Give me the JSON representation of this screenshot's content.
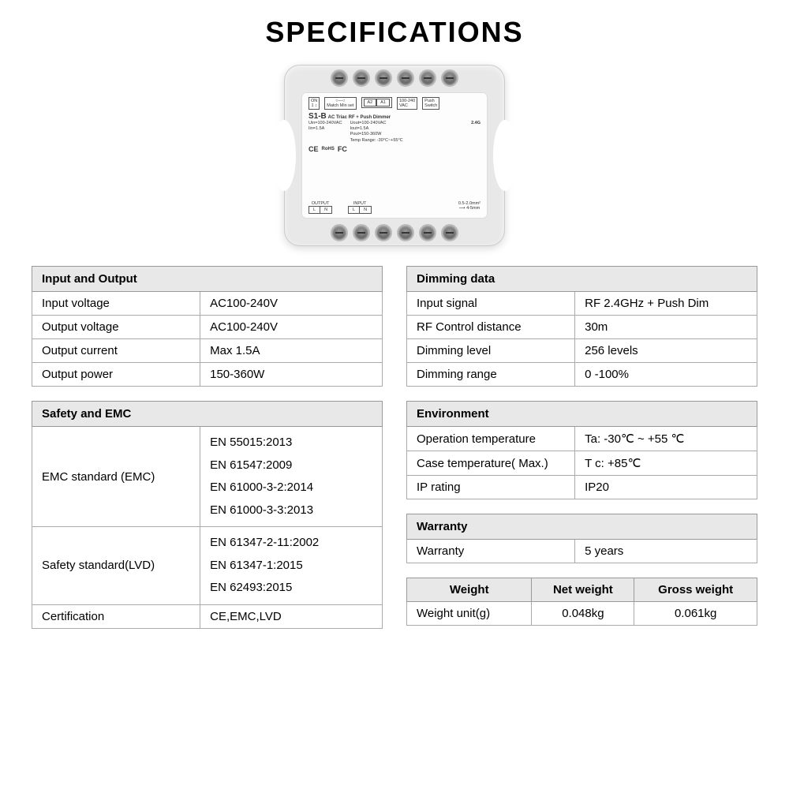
{
  "title": "SPECIFICATIONS",
  "device": {
    "model": "S1-B",
    "subtitle": "AC Triac RF + Push Dimmer",
    "uin": "Uin=100-240VAC",
    "iin": "Iin=1.5A",
    "uout": "Uout=100-240VAC",
    "iout": "Iout=1.5A",
    "pout": "Pout=150-360W",
    "temp": "Temp Range: -30°C~+55°C",
    "wireless": "2.4G",
    "a2": "A2",
    "a1": "A1",
    "vac_small": "100-240\nVAC",
    "push_sw": "Push\nSwitch",
    "match": "Match",
    "minset": "Min set",
    "on": "ON",
    "output_lbl": "OUTPUT",
    "input_lbl": "INPUT",
    "L": "L",
    "N": "N",
    "rohs": "RoHS",
    "wire": "0.5-2.0mm²",
    "strip": "4-5mm"
  },
  "sections": {
    "io": {
      "header": "Input and Output",
      "rows": [
        {
          "label": "Input voltage",
          "value": "AC100-240V"
        },
        {
          "label": "Output voltage",
          "value": "AC100-240V"
        },
        {
          "label": "Output current",
          "value": "Max 1.5A"
        },
        {
          "label": "Output power",
          "value": "150-360W"
        }
      ]
    },
    "safety": {
      "header": "Safety and EMC",
      "emc_label": "EMC standard (EMC)",
      "emc_values": "EN 55015:2013\nEN 61547:2009\nEN 61000-3-2:2014\nEN 61000-3-3:2013",
      "lvd_label": "Safety standard(LVD)",
      "lvd_values": "EN 61347-2-11:2002\nEN 61347-1:2015\nEN 62493:2015",
      "cert_label": "Certification",
      "cert_value": "CE,EMC,LVD"
    },
    "dimming": {
      "header": "Dimming data",
      "rows": [
        {
          "label": "Input signal",
          "value": "RF 2.4GHz + Push Dim"
        },
        {
          "label": "RF Control distance",
          "value": "30m"
        },
        {
          "label": "Dimming level",
          "value": "256 levels"
        },
        {
          "label": "Dimming range",
          "value": "0 -100%"
        }
      ]
    },
    "env": {
      "header": "Environment",
      "rows": [
        {
          "label": "Operation temperature",
          "value": "Ta: -30℃ ~ +55 ℃"
        },
        {
          "label": "Case temperature( Max.)",
          "value": "T c:  +85℃"
        },
        {
          "label": "IP rating",
          "value": "IP20"
        }
      ]
    },
    "warranty": {
      "header": "Warranty",
      "label": "Warranty",
      "value": "5 years"
    },
    "weight": {
      "h1": "Weight",
      "h2": "Net weight",
      "h3": "Gross weight",
      "label": "Weight unit(g)",
      "net": "0.048kg",
      "gross": "0.061kg"
    }
  }
}
